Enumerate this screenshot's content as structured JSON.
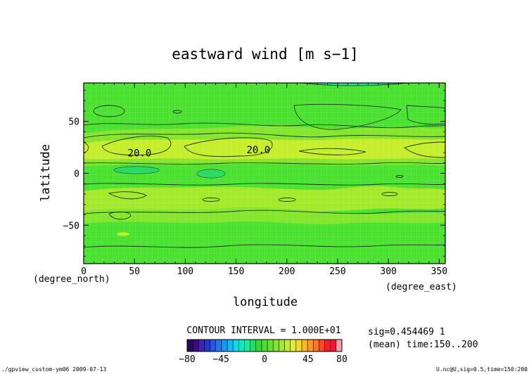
{
  "chart_data": {
    "type": "contour",
    "title": "eastward wind [m s−1]",
    "xlabel": "longitude",
    "ylabel": "latitude",
    "x_unit": "(degree_east)",
    "y_unit": "(degree_north)",
    "xlim": [
      0,
      356
    ],
    "ylim": [
      -87,
      87
    ],
    "x_ticks": [
      0,
      50,
      100,
      150,
      200,
      250,
      300,
      350
    ],
    "y_ticks": [
      -50,
      0,
      50
    ],
    "contour_labels": [
      {
        "lon": 55,
        "lat": 19,
        "text": "20.0"
      },
      {
        "lon": 172,
        "lat": 22,
        "text": "20.0"
      }
    ],
    "contour_interval_text": "CONTOUR INTERVAL = 1.000E+01",
    "colorbar": {
      "tick_labels": [
        "−80",
        "−45",
        "0",
        "45",
        "80"
      ],
      "tick_values": [
        -80,
        -45,
        0,
        45,
        80
      ],
      "range": [
        -80,
        80
      ],
      "colors": [
        "#2a0a5a",
        "#3a0a8a",
        "#4020b8",
        "#2038d8",
        "#1f55ea",
        "#1f78f0",
        "#1798f2",
        "#12b8ee",
        "#14d6e2",
        "#18e4c0",
        "#20e89a",
        "#2ad86a",
        "#36d83a",
        "#4ae032",
        "#62e22c",
        "#80e62a",
        "#a0ea2a",
        "#c4ee2a",
        "#e4ee2a",
        "#f6d82a",
        "#f8b82a",
        "#f89828",
        "#f87828",
        "#f44a2a",
        "#f02030",
        "#e81838",
        "#f0a0a8"
      ]
    },
    "info_lines": [
      "sig=0.454469 1",
      "(mean) time:150..200"
    ],
    "footer_left": "./gpview_custom-ym06  2009-07-13",
    "footer_right": "U.nc@U,sig=0.5,time=150:200"
  }
}
